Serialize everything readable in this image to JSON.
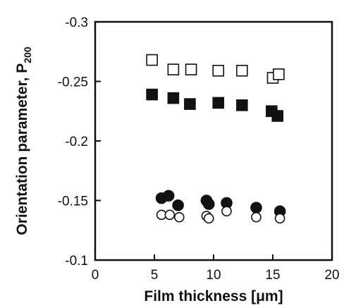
{
  "chart_data": {
    "type": "scatter",
    "xlabel": "Film thickness [μm]",
    "ylabel": "Orientation parameter, P",
    "ylabel_subscript": "200",
    "xlim": [
      0,
      20
    ],
    "ylim": [
      -0.1,
      -0.3
    ],
    "y_axis_inverted": true,
    "grid": false,
    "x_ticks": [
      0,
      5,
      10,
      15,
      20
    ],
    "x_tick_labels": [
      "0",
      "5",
      "10",
      "15",
      "20"
    ],
    "y_ticks": [
      -0.1,
      -0.15,
      -0.2,
      -0.25,
      -0.3
    ],
    "y_tick_labels": [
      "-0.1",
      "-0.15",
      "-0.2",
      "-0.25",
      "-0.3"
    ],
    "series": [
      {
        "marker": "square",
        "fill": "none",
        "points": [
          [
            4.8,
            -0.268
          ],
          [
            6.6,
            -0.26
          ],
          [
            8.1,
            -0.26
          ],
          [
            10.4,
            -0.259
          ],
          [
            12.4,
            -0.259
          ],
          [
            15.0,
            -0.253
          ],
          [
            15.5,
            -0.256
          ]
        ]
      },
      {
        "marker": "square",
        "fill": "filled",
        "points": [
          [
            4.8,
            -0.239
          ],
          [
            6.6,
            -0.236
          ],
          [
            8.0,
            -0.231
          ],
          [
            10.4,
            -0.232
          ],
          [
            12.4,
            -0.23
          ],
          [
            14.9,
            -0.225
          ],
          [
            15.4,
            -0.221
          ]
        ]
      },
      {
        "marker": "circle",
        "fill": "filled",
        "points": [
          [
            5.6,
            -0.152
          ],
          [
            6.2,
            -0.154
          ],
          [
            7.0,
            -0.146
          ],
          [
            9.4,
            -0.15
          ],
          [
            9.6,
            -0.147
          ],
          [
            11.1,
            -0.148
          ],
          [
            13.6,
            -0.144
          ],
          [
            15.6,
            -0.141
          ]
        ]
      },
      {
        "marker": "circle",
        "fill": "none",
        "points": [
          [
            5.6,
            -0.138
          ],
          [
            6.3,
            -0.138
          ],
          [
            7.1,
            -0.136
          ],
          [
            9.4,
            -0.137
          ],
          [
            9.6,
            -0.135
          ],
          [
            11.1,
            -0.141
          ],
          [
            13.6,
            -0.136
          ],
          [
            15.6,
            -0.135
          ]
        ]
      }
    ]
  }
}
